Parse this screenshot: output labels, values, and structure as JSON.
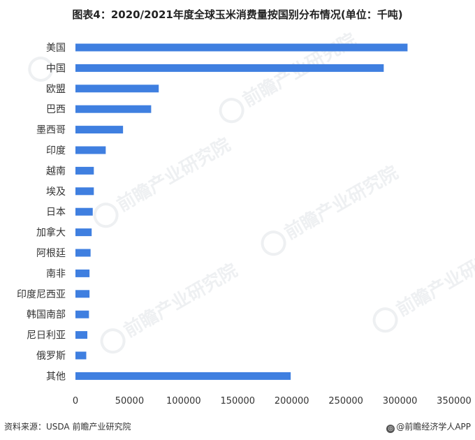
{
  "header": {
    "title": "图表4：2020/2021年度全球玉米消费量按国别分布情况(单位：千吨)"
  },
  "chart_data": {
    "type": "bar",
    "orientation": "horizontal",
    "categories": [
      "美国",
      "中国",
      "欧盟",
      "巴西",
      "墨西哥",
      "印度",
      "越南",
      "埃及",
      "日本",
      "加拿大",
      "阿根廷",
      "南非",
      "印度尼西亚",
      "韩国南部",
      "尼日利亚",
      "俄罗斯",
      "其他"
    ],
    "values": [
      307000,
      285000,
      77000,
      70000,
      44000,
      28000,
      17000,
      17000,
      16000,
      15000,
      14000,
      13000,
      13000,
      12500,
      11000,
      10000,
      199000
    ],
    "xlim": [
      0,
      350000
    ],
    "xticks": [
      "0",
      "50000",
      "100000",
      "150000",
      "200000",
      "250000",
      "300000",
      "350000"
    ],
    "bar_color": "#3f7fe0",
    "grid": false
  },
  "footer": {
    "source": "资料来源：USDA 前瞻产业研究院",
    "brand": "@前瞻经济学人APP"
  },
  "watermark": {
    "text": "前瞻产业研究院"
  }
}
